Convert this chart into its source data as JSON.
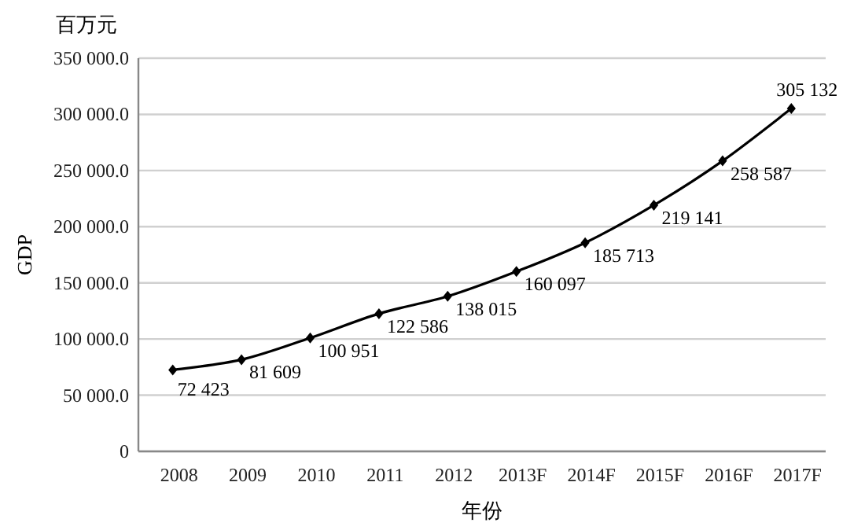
{
  "chart_data": {
    "type": "line",
    "ylabel": "GDP",
    "xlabel": "年份",
    "annotations": [
      "百万元"
    ],
    "categories": [
      "2008",
      "2009",
      "2010",
      "2011",
      "2012",
      "2013F",
      "2014F",
      "2015F",
      "2016F",
      "2017F"
    ],
    "series": [
      {
        "color": "#000000",
        "values": [
          72423,
          81609,
          100951,
          122586,
          138015,
          160097,
          185713,
          219141,
          258587,
          305132
        ],
        "value_labels": [
          "72 423",
          "81 609",
          "100 951",
          "122 586",
          "138 015",
          "160 097",
          "185 713",
          "219 141",
          "258 587",
          "305 132"
        ]
      }
    ],
    "ylim": [
      0,
      350000
    ],
    "yticks": [
      0,
      {
        "value": 50000,
        "label": "50 000.0"
      },
      {
        "value": 100000,
        "label": "100 000.0"
      },
      {
        "value": 150000,
        "label": "150 000.0"
      },
      {
        "value": 200000,
        "label": "200 000.0"
      },
      {
        "value": 250000,
        "label": "250 000.0"
      },
      {
        "value": 300000,
        "label": "300 000.0"
      },
      {
        "value": 350000,
        "label": "350 000.0"
      }
    ],
    "grid": "y",
    "marker": "diamond",
    "line_style": "solid"
  }
}
